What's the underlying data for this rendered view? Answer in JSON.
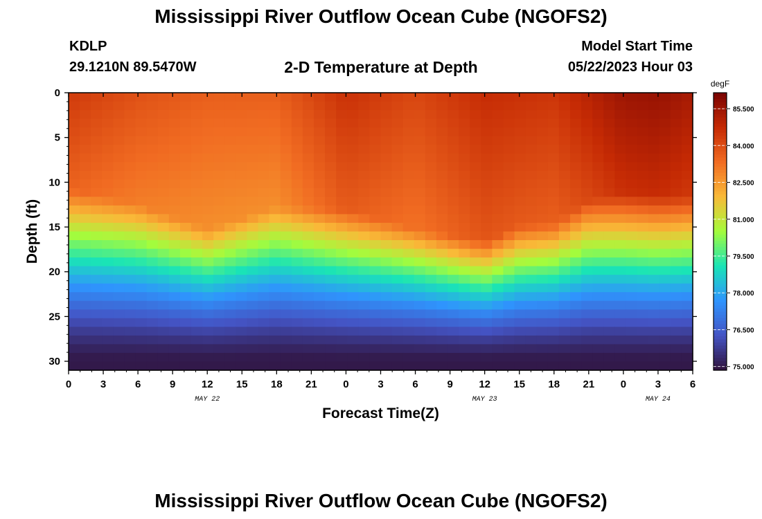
{
  "title": "Mississippi River Outflow Ocean Cube (NGOFS2)",
  "title_repeat": "Mississippi River Outflow Ocean Cube (NGOFS2)",
  "station": {
    "id": "KDLP",
    "coords": "29.1210N  89.5470W"
  },
  "model_start": {
    "label": "Model Start Time",
    "value": "05/22/2023 Hour 03"
  },
  "chart_data": {
    "type": "heatmap",
    "subtitle": "2-D Temperature at Depth",
    "xlabel": "Forecast Time(Z)",
    "ylabel": "Depth (ft)",
    "x_ticks": [
      "0",
      "3",
      "6",
      "9",
      "12",
      "15",
      "18",
      "21",
      "0",
      "3",
      "6",
      "9",
      "12",
      "15",
      "18",
      "21",
      "0",
      "3",
      "6"
    ],
    "x_hours": [
      0,
      54
    ],
    "day_labels": [
      {
        "text": "MAY 22",
        "hour": 12
      },
      {
        "text": "MAY 23",
        "hour": 36
      },
      {
        "text": "MAY 24",
        "hour": 51
      }
    ],
    "y_ticks": [
      0,
      5,
      10,
      15,
      20,
      25,
      30
    ],
    "ylim": [
      0,
      31
    ],
    "y_inverted": true,
    "colorbar": {
      "unit": "degF",
      "min": 74.85,
      "max": 86.15,
      "tick_values": [
        85.5,
        84.0,
        82.5,
        81.0,
        79.5,
        78.0,
        76.5,
        75.0
      ],
      "tick_labels": [
        "85.500",
        "84.000",
        "82.500",
        "81.000",
        "79.500",
        "78.000",
        "76.500",
        "75.000"
      ],
      "colormap": [
        "#30123b",
        "#4454c4",
        "#2f94fd",
        "#1ae4b6",
        "#a4fc3c",
        "#f9ba38",
        "#f16c22",
        "#c52a04",
        "#7a0403"
      ]
    },
    "thermocline_depth_ft": {
      "hours": [
        0,
        6,
        12,
        18,
        24,
        30,
        36,
        39,
        42,
        45,
        48,
        51,
        54
      ],
      "values": [
        14.5,
        16.2,
        19.0,
        16.5,
        16.8,
        19.0,
        20.3,
        18.6,
        18.3,
        15.7,
        15.0,
        15.2,
        15.3
      ]
    },
    "mixed_layer_temp_degF": {
      "hours": [
        0,
        6,
        12,
        18,
        24,
        30,
        36,
        42,
        48,
        51,
        54
      ],
      "values": [
        84.4,
        83.9,
        83.6,
        83.6,
        84.6,
        84.1,
        84.7,
        84.5,
        85.5,
        85.6,
        85.3
      ]
    },
    "bottom_temp_degF": 75.0
  }
}
